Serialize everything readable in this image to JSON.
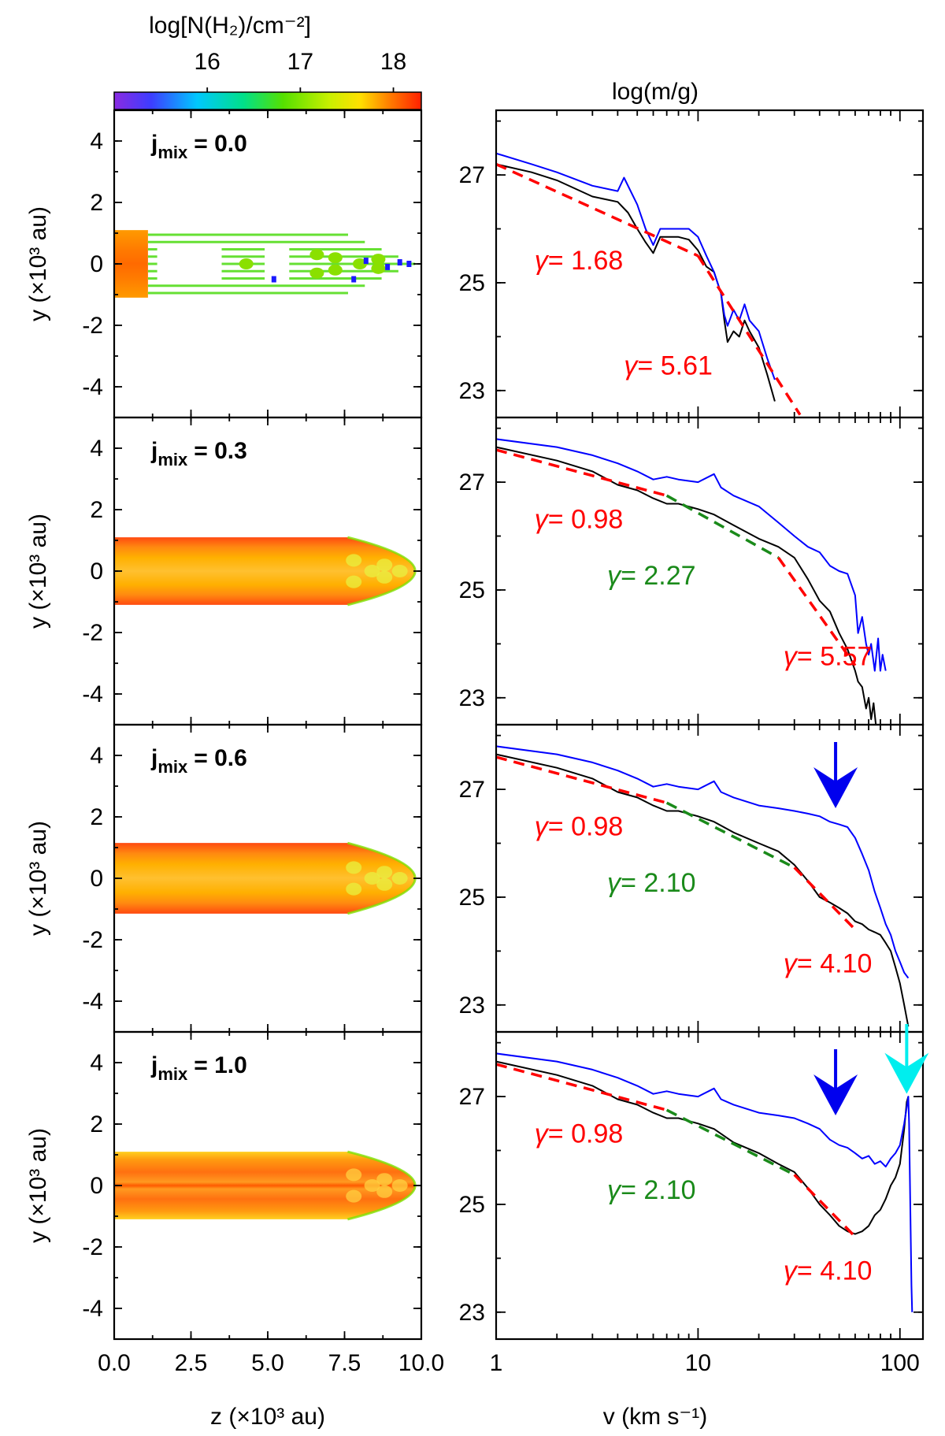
{
  "chart_data": [
    {
      "type": "heatmap",
      "title": "log[N(H₂)/cm⁻²]",
      "colorbar": {
        "label": "log[N(H₂)/cm⁻²]",
        "range": [
          15.0,
          18.3
        ],
        "ticks": [
          "16",
          "17",
          "18"
        ],
        "tick_values": [
          16,
          17,
          18
        ]
      },
      "xlabel": "z (×10³ au)",
      "ylabel": "y (×10³ au)",
      "xlim": [
        0,
        10
      ],
      "ylim": [
        -5,
        5
      ],
      "xticks": [
        "0.0",
        "2.5",
        "5.0",
        "7.5",
        "10.0"
      ],
      "xtick_values": [
        0,
        2.5,
        5,
        7.5,
        10
      ],
      "yticks": [
        "4",
        "2",
        "0",
        "-2",
        "-4"
      ],
      "ytick_values": [
        4,
        2,
        0,
        -2,
        -4
      ],
      "panels": [
        {
          "j_symbol": "j",
          "j_sub": "mix",
          "j_value": "= 0.0",
          "jet_halfwidth": 1.1,
          "jet_length": 9.8,
          "head_halfwidth": 1.0,
          "head_length": 1.2
        },
        {
          "j_symbol": "j",
          "j_sub": "mix",
          "j_value": "= 0.3",
          "jet_halfwidth": 1.1,
          "jet_length": 9.8
        },
        {
          "j_symbol": "j",
          "j_sub": "mix",
          "j_value": "= 0.6",
          "jet_halfwidth": 1.15,
          "jet_length": 9.8
        },
        {
          "j_symbol": "j",
          "j_sub": "mix",
          "j_value": "= 1.0",
          "jet_halfwidth": 1.1,
          "jet_length": 9.8
        }
      ]
    },
    {
      "type": "line",
      "title": "log(m/g)",
      "xlabel": "v (km s⁻¹)",
      "xscale": "log",
      "xlim": [
        1,
        130
      ],
      "ylim": [
        22.5,
        28.2
      ],
      "xticks": [
        "1",
        "10",
        "100"
      ],
      "xtick_values": [
        1,
        10,
        100
      ],
      "yticks": [
        "27",
        "25",
        "23"
      ],
      "ytick_values": [
        27,
        25,
        23
      ],
      "colors": {
        "black": "#000000",
        "blue": "#0000ff",
        "red": "#ff0000",
        "green": "#1a8a1a",
        "arrow_blue": "#0000ee",
        "arrow_cyan": "#00eeee"
      },
      "panels": [
        {
          "series": [
            {
              "name": "black",
              "x": [
                1,
                1.5,
                2,
                3,
                4,
                4.5,
                5,
                5.5,
                6,
                6.5,
                7,
                8,
                9,
                10,
                11,
                12,
                13,
                13.5,
                14,
                15,
                16,
                17,
                18,
                20,
                22,
                24
              ],
              "y": [
                27.2,
                27.05,
                26.9,
                26.6,
                26.5,
                26.3,
                26.0,
                25.75,
                25.55,
                25.85,
                25.85,
                25.85,
                25.8,
                25.6,
                25.3,
                25.2,
                24.8,
                24.3,
                23.9,
                24.1,
                24.0,
                24.3,
                24.1,
                23.8,
                23.3,
                22.8
              ]
            },
            {
              "name": "blue",
              "x": [
                1,
                1.5,
                2,
                3,
                4,
                4.3,
                5,
                5.5,
                6,
                6.5,
                7,
                8,
                9,
                10,
                11,
                12,
                13,
                13.5,
                14,
                15,
                16,
                17,
                18,
                20,
                22,
                24
              ],
              "y": [
                27.4,
                27.2,
                27.05,
                26.8,
                26.7,
                26.95,
                26.45,
                26.0,
                25.7,
                26.0,
                26.0,
                26.0,
                26.0,
                25.85,
                25.5,
                25.2,
                24.8,
                24.4,
                24.2,
                24.5,
                24.3,
                24.6,
                24.3,
                24.1,
                23.6,
                23.2
              ]
            }
          ],
          "fits": [
            {
              "gamma": "1.68",
              "color": "#ff0000",
              "x": [
                1,
                10
              ],
              "y": [
                27.2,
                25.5
              ],
              "label_at": [
                1.55,
                25.25
              ]
            },
            {
              "gamma": "5.61",
              "color": "#ff0000",
              "x": [
                10,
                32
              ],
              "y": [
                25.5,
                22.55
              ],
              "label_at": [
                4.3,
                23.3
              ]
            }
          ],
          "arrows": []
        },
        {
          "series": [
            {
              "name": "black",
              "x": [
                1,
                2,
                3,
                4,
                5,
                6,
                7,
                8,
                10,
                12,
                15,
                20,
                25,
                30,
                35,
                40,
                45,
                50,
                55,
                60,
                62,
                65,
                68,
                70,
                72,
                74,
                76
              ],
              "y": [
                27.65,
                27.4,
                27.2,
                26.95,
                26.85,
                26.7,
                26.6,
                26.6,
                26.5,
                26.4,
                26.2,
                25.95,
                25.8,
                25.6,
                25.2,
                24.8,
                24.6,
                24.2,
                23.9,
                23.5,
                23.3,
                23.2,
                22.8,
                23.0,
                22.6,
                22.9,
                22.5
              ]
            },
            {
              "name": "blue",
              "x": [
                1,
                2,
                3,
                4,
                5,
                6,
                7,
                8,
                10,
                12,
                13,
                15,
                20,
                25,
                30,
                35,
                40,
                45,
                50,
                55,
                60,
                62,
                65,
                68,
                70,
                72,
                75,
                78,
                80,
                82,
                85
              ],
              "y": [
                27.8,
                27.65,
                27.5,
                27.35,
                27.2,
                27.05,
                27.1,
                27.05,
                27.0,
                27.15,
                26.9,
                26.75,
                26.55,
                26.25,
                26.0,
                25.8,
                25.7,
                25.45,
                25.35,
                25.3,
                24.9,
                24.2,
                24.5,
                24.0,
                23.8,
                24.0,
                23.5,
                24.1,
                23.5,
                23.8,
                23.5
              ]
            }
          ],
          "fits": [
            {
              "gamma": "0.98",
              "color": "#ff0000",
              "x": [
                1,
                7
              ],
              "y": [
                27.6,
                26.75
              ],
              "label_at": [
                1.55,
                26.15
              ]
            },
            {
              "gamma": "2.27",
              "color": "#1a8a1a",
              "x": [
                7,
                25
              ],
              "y": [
                26.75,
                25.6
              ],
              "label_at": [
                3.55,
                25.1
              ]
            },
            {
              "gamma": "5.57",
              "color": "#ff0000",
              "x": [
                25,
                60
              ],
              "y": [
                25.6,
                23.6
              ],
              "label_at": [
                26.5,
                23.6
              ]
            }
          ],
          "arrows": []
        },
        {
          "series": [
            {
              "name": "black",
              "x": [
                1,
                2,
                3,
                4,
                5,
                6,
                7,
                8,
                10,
                12,
                15,
                20,
                25,
                30,
                35,
                40,
                45,
                50,
                55,
                60,
                65,
                70,
                75,
                80,
                85,
                90,
                95,
                100,
                105,
                110
              ],
              "y": [
                27.65,
                27.4,
                27.2,
                26.95,
                26.85,
                26.7,
                26.6,
                26.6,
                26.5,
                26.4,
                26.2,
                26.0,
                25.85,
                25.6,
                25.3,
                25.0,
                24.9,
                24.8,
                24.7,
                24.55,
                24.5,
                24.4,
                24.35,
                24.3,
                24.15,
                24.0,
                23.7,
                23.4,
                23.0,
                22.6
              ]
            },
            {
              "name": "blue",
              "x": [
                1,
                2,
                3,
                4,
                5,
                6,
                7,
                8,
                10,
                12,
                13,
                15,
                20,
                25,
                30,
                35,
                40,
                45,
                50,
                55,
                60,
                65,
                70,
                75,
                80,
                85,
                90,
                95,
                100,
                105,
                110
              ],
              "y": [
                27.8,
                27.65,
                27.5,
                27.35,
                27.2,
                27.05,
                27.1,
                27.05,
                27.0,
                27.15,
                26.95,
                26.85,
                26.7,
                26.65,
                26.6,
                26.55,
                26.5,
                26.4,
                26.35,
                26.3,
                26.1,
                25.8,
                25.5,
                25.1,
                24.8,
                24.5,
                24.3,
                24.0,
                23.8,
                23.6,
                23.5
              ]
            }
          ],
          "fits": [
            {
              "gamma": "0.98",
              "color": "#ff0000",
              "x": [
                1,
                7
              ],
              "y": [
                27.6,
                26.75
              ],
              "label_at": [
                1.55,
                26.15
              ]
            },
            {
              "gamma": "2.10",
              "color": "#1a8a1a",
              "x": [
                7,
                30
              ],
              "y": [
                26.75,
                25.55
              ],
              "label_at": [
                3.55,
                25.1
              ]
            },
            {
              "gamma": "4.10",
              "color": "#ff0000",
              "x": [
                30,
                60
              ],
              "y": [
                25.55,
                24.4
              ],
              "label_at": [
                26.5,
                23.6
              ]
            }
          ],
          "arrows": [
            {
              "color": "#0000ee",
              "x": 48,
              "y_head": 26.65
            }
          ]
        },
        {
          "series": [
            {
              "name": "black",
              "x": [
                1,
                2,
                3,
                4,
                5,
                6,
                7,
                8,
                10,
                12,
                15,
                20,
                25,
                30,
                35,
                40,
                45,
                50,
                55,
                60,
                65,
                70,
                75,
                80,
                85,
                90,
                95,
                100,
                105,
                108,
                110
              ],
              "y": [
                27.65,
                27.4,
                27.2,
                26.95,
                26.85,
                26.7,
                26.6,
                26.6,
                26.5,
                26.4,
                26.15,
                25.95,
                25.75,
                25.6,
                25.3,
                25.0,
                24.8,
                24.6,
                24.5,
                24.45,
                24.5,
                24.6,
                24.8,
                24.9,
                25.1,
                25.35,
                25.5,
                25.75,
                26.4,
                26.9,
                27.0
              ]
            },
            {
              "name": "blue",
              "x": [
                1,
                2,
                3,
                4,
                5,
                6,
                7,
                8,
                10,
                12,
                13,
                15,
                20,
                25,
                30,
                35,
                40,
                45,
                50,
                55,
                60,
                65,
                70,
                75,
                80,
                85,
                90,
                95,
                100,
                105,
                108,
                110,
                111,
                112,
                113,
                114,
                115
              ],
              "y": [
                27.8,
                27.65,
                27.5,
                27.35,
                27.2,
                27.05,
                27.1,
                27.05,
                27.0,
                27.15,
                26.95,
                26.85,
                26.7,
                26.65,
                26.6,
                26.5,
                26.4,
                26.2,
                26.1,
                26.05,
                25.95,
                25.85,
                25.9,
                25.75,
                25.8,
                25.7,
                25.85,
                25.95,
                26.1,
                26.5,
                26.8,
                27.0,
                26.5,
                25.5,
                24.5,
                23.5,
                23.0
              ]
            }
          ],
          "fits": [
            {
              "gamma": "0.98",
              "color": "#ff0000",
              "x": [
                1,
                7
              ],
              "y": [
                27.6,
                26.75
              ],
              "label_at": [
                1.55,
                26.15
              ]
            },
            {
              "gamma": "2.10",
              "color": "#1a8a1a",
              "x": [
                7,
                30
              ],
              "y": [
                26.75,
                25.55
              ],
              "label_at": [
                3.55,
                25.1
              ]
            },
            {
              "gamma": "4.10",
              "color": "#ff0000",
              "x": [
                30,
                60
              ],
              "y": [
                25.55,
                24.4
              ],
              "label_at": [
                26.5,
                23.6
              ]
            }
          ],
          "arrows": [
            {
              "color": "#0000ee",
              "x": 48,
              "y_head": 26.65
            },
            {
              "color": "#00eeee",
              "x": 108,
              "y_head": 27.05
            }
          ]
        }
      ]
    }
  ]
}
